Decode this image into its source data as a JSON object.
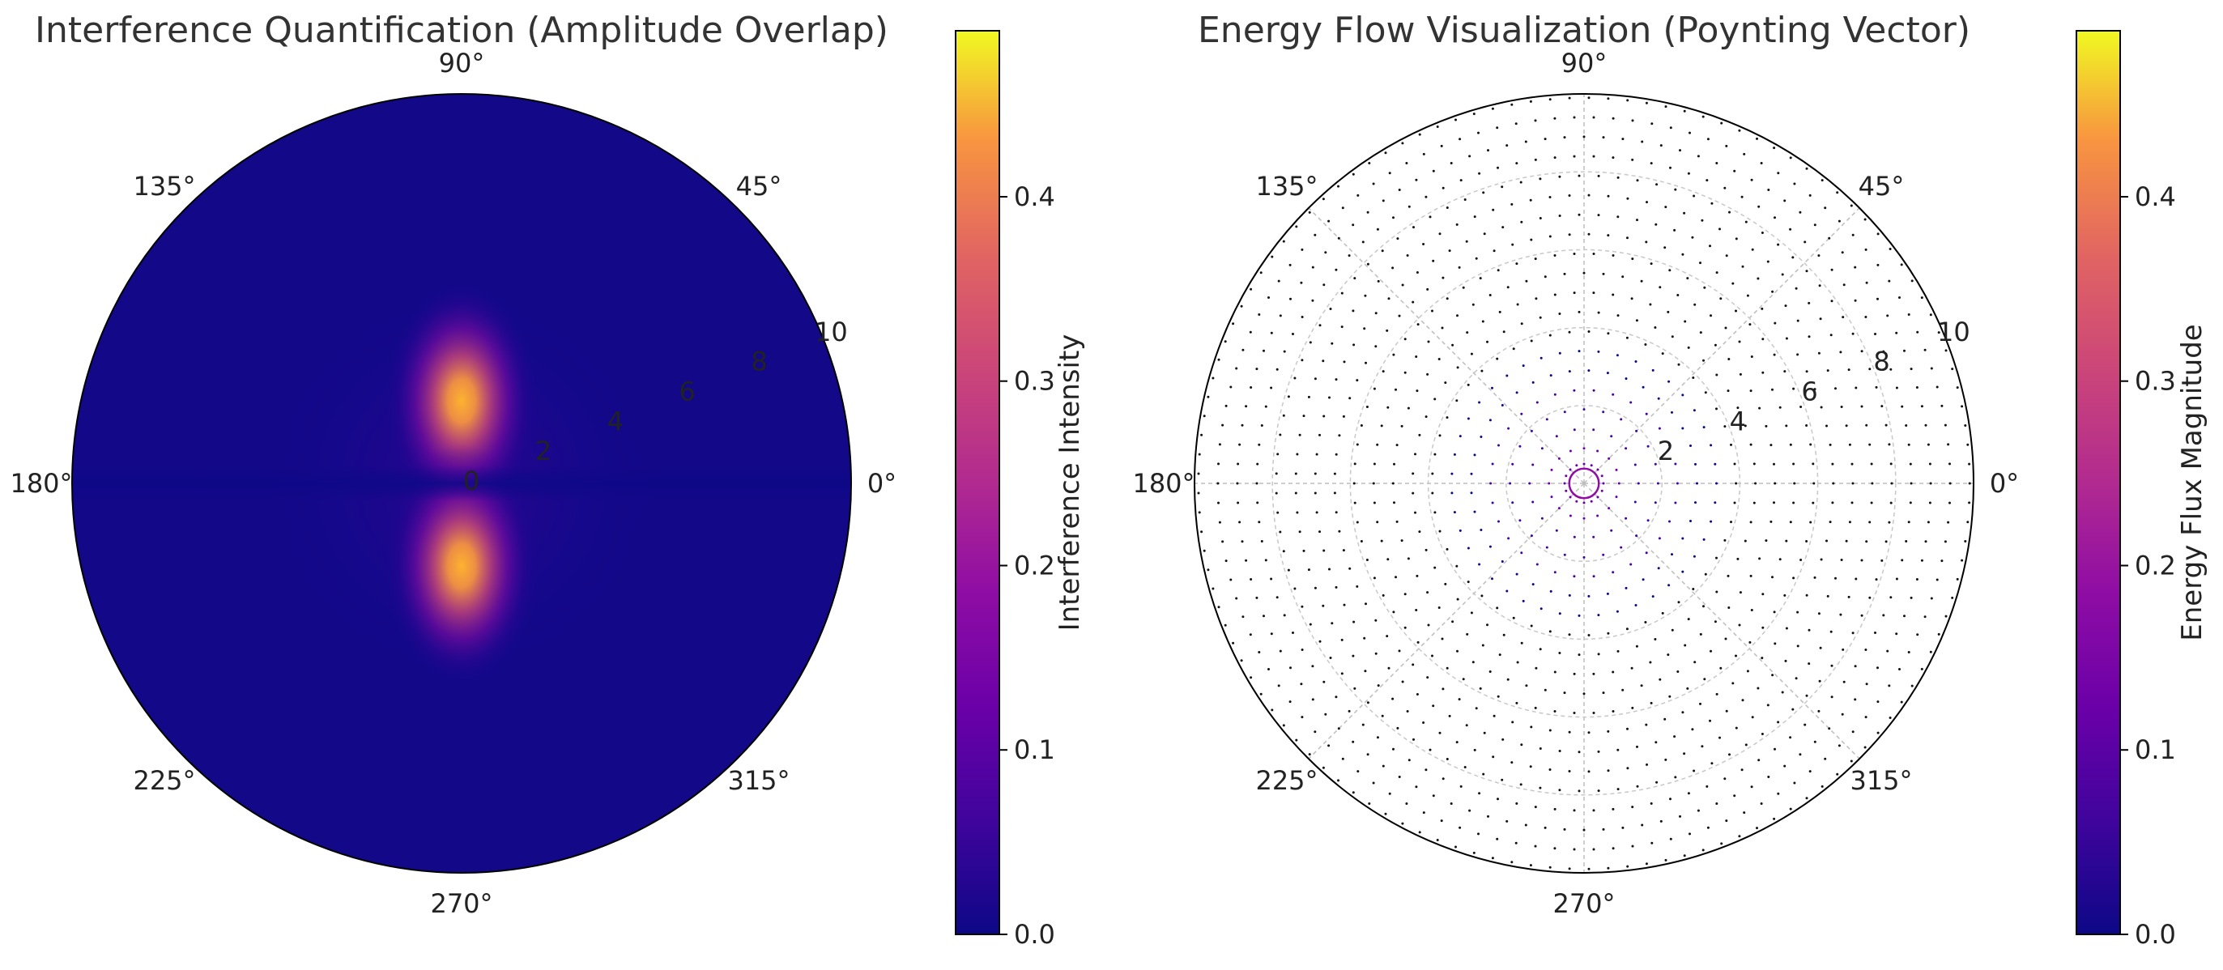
{
  "chart_data": [
    {
      "type": "heatmap",
      "projection": "polar",
      "title": "Interference Quantification (Amplitude Overlap)",
      "angle_ticks": [
        "0°",
        "45°",
        "90°",
        "135°",
        "180°",
        "225°",
        "270°",
        "315°"
      ],
      "radial_ticks": [
        "0",
        "2",
        "4",
        "6",
        "8",
        "10"
      ],
      "rlim": [
        0,
        10
      ],
      "grid": false,
      "colormap": "plasma",
      "colorbar": {
        "label": "Interference Intensity",
        "range": [
          0.0,
          0.49
        ],
        "ticks": [
          "0.0",
          "0.1",
          "0.2",
          "0.3",
          "0.4"
        ],
        "tick_values": [
          0.0,
          0.1,
          0.2,
          0.3,
          0.4
        ]
      },
      "description_of_field": "intensity peaks ~0.45 near the origin along 90° and 270°, zero along the 0°–180° axis, decaying outward"
    },
    {
      "type": "scatter",
      "projection": "polar",
      "title": "Energy Flow Visualization (Poynting Vector)",
      "angle_ticks": [
        "0°",
        "45°",
        "90°",
        "135°",
        "180°",
        "225°",
        "270°",
        "315°"
      ],
      "radial_ticks": [
        "2",
        "4",
        "6",
        "8",
        "10"
      ],
      "rlim": [
        0,
        10
      ],
      "grid": true,
      "colormap": "plasma",
      "colorbar": {
        "label": "Energy Flux Magnitude",
        "range": [
          0.0,
          0.49
        ],
        "ticks": [
          "0.0",
          "0.1",
          "0.2",
          "0.3",
          "0.4"
        ],
        "tick_values": [
          0.0,
          0.1,
          0.2,
          0.3,
          0.4
        ]
      },
      "ring_radii": [
        0.5,
        0.9,
        1.4,
        1.9,
        2.4,
        2.9,
        3.4,
        3.9,
        4.4,
        4.9,
        5.4,
        5.9,
        6.4,
        6.9,
        7.4,
        7.9,
        8.4,
        8.9,
        9.4,
        9.9
      ],
      "ring_magnitudes": [
        0.12,
        0.1,
        0.08,
        0.06,
        0.04,
        0.02,
        0.01,
        0.0,
        0.0,
        0.0,
        0.0,
        0.0,
        0.0,
        0.0,
        0.0,
        0.0,
        0.0,
        0.0,
        0.0,
        0.0
      ],
      "inner_circle_radius": 0.38
    }
  ]
}
